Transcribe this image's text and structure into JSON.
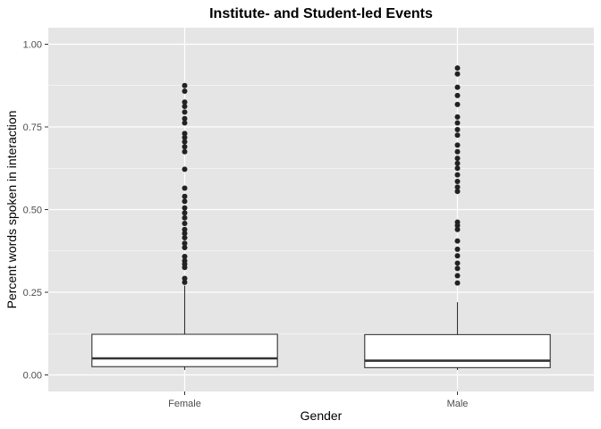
{
  "chart_data": {
    "type": "boxplot",
    "title": "Institute- and Student-led Events",
    "xlabel": "Gender",
    "ylabel": "Percent words spoken in interaction",
    "categories": [
      "Female",
      "Male"
    ],
    "ylim": [
      -0.05,
      1.05
    ],
    "yticks": [
      0.0,
      0.25,
      0.5,
      0.75,
      1.0
    ],
    "ytick_labels": [
      "0.00",
      "0.25",
      "0.50",
      "0.75",
      "1.00"
    ],
    "grid": true,
    "background_color": "#e5e5e5",
    "grid_color": "#ffffff",
    "box_fill": "#ffffff",
    "line_color": "#333333",
    "point_color": "#222222",
    "boxes": [
      {
        "category": "Female",
        "min": 0.015,
        "q1": 0.025,
        "median": 0.05,
        "q3": 0.123,
        "whisker_high": 0.27,
        "outliers": [
          0.875,
          0.858,
          0.825,
          0.812,
          0.795,
          0.775,
          0.762,
          0.73,
          0.718,
          0.705,
          0.69,
          0.675,
          0.622,
          0.565,
          0.54,
          0.525,
          0.505,
          0.49,
          0.475,
          0.458,
          0.44,
          0.428,
          0.415,
          0.398,
          0.385,
          0.358,
          0.345,
          0.335,
          0.325,
          0.292,
          0.28
        ]
      },
      {
        "category": "Male",
        "min": 0.015,
        "q1": 0.022,
        "median": 0.043,
        "q3": 0.122,
        "whisker_high": 0.22,
        "outliers": [
          0.928,
          0.91,
          0.87,
          0.845,
          0.818,
          0.78,
          0.762,
          0.742,
          0.725,
          0.695,
          0.675,
          0.655,
          0.64,
          0.625,
          0.605,
          0.585,
          0.568,
          0.555,
          0.462,
          0.452,
          0.44,
          0.405,
          0.38,
          0.36,
          0.338,
          0.322,
          0.3,
          0.278
        ]
      }
    ]
  }
}
